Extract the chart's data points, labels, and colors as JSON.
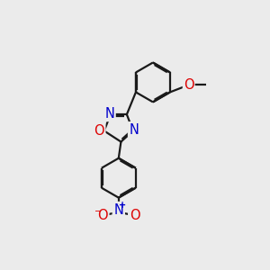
{
  "background_color": "#ebebeb",
  "line_color": "#1a1a1a",
  "bond_lw": 1.6,
  "dbo": 0.06,
  "atom_colors": {
    "N": "#0000cc",
    "O": "#dd0000",
    "C": "#1a1a1a"
  },
  "fs": 10.5
}
